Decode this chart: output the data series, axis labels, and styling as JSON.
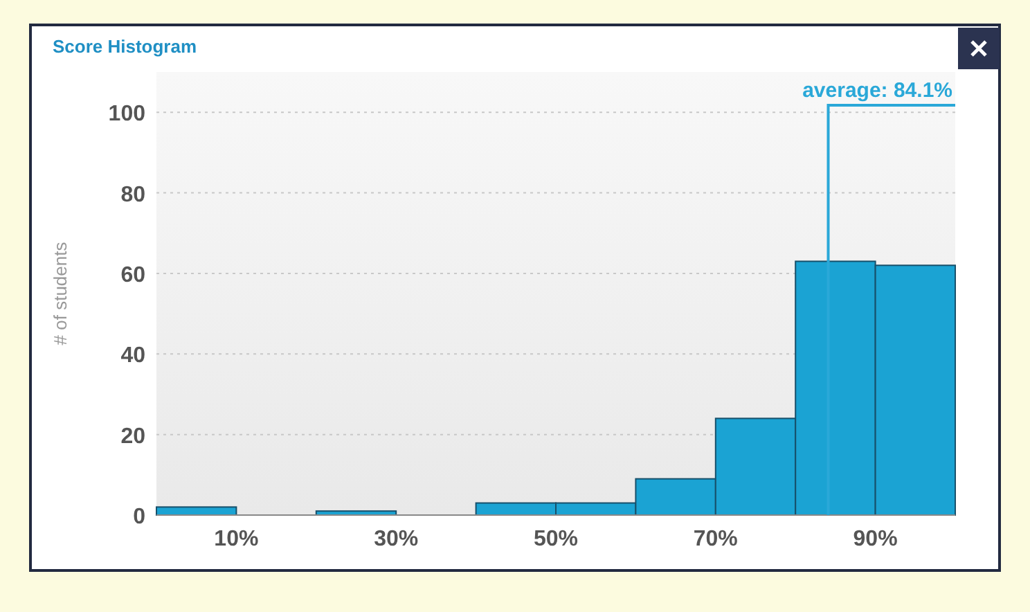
{
  "chart_data": {
    "type": "histogram",
    "title": "Score Histogram",
    "ylabel": "# of students",
    "bins": [
      0,
      10,
      20,
      30,
      40,
      50,
      60,
      70,
      80,
      90,
      100
    ],
    "values": [
      2,
      0,
      1,
      0,
      3,
      3,
      9,
      24,
      63,
      62
    ],
    "color": "#1ba3d3",
    "xlim": [
      0,
      100
    ],
    "xticks": [
      {
        "value": 10,
        "label": "10%"
      },
      {
        "value": 30,
        "label": "30%"
      },
      {
        "value": 50,
        "label": "50%"
      },
      {
        "value": 70,
        "label": "70%"
      },
      {
        "value": 90,
        "label": "90%"
      }
    ],
    "ylim": [
      0,
      110
    ],
    "yticks": [
      0,
      20,
      40,
      60,
      80,
      100
    ],
    "grid": "y",
    "ref_lines": [
      {
        "axis": "x",
        "value": 84.1,
        "label": "average: 84.1%",
        "color": "#2aa8d8"
      }
    ]
  }
}
